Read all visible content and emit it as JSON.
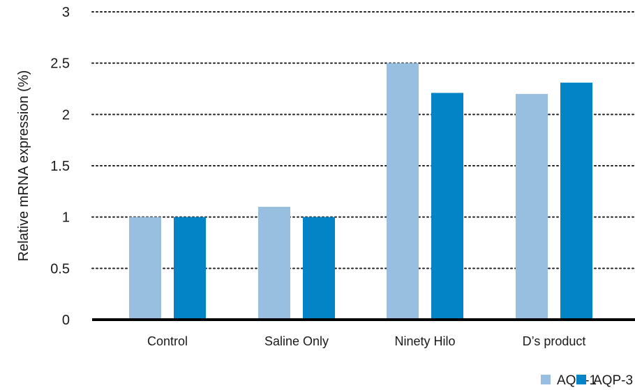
{
  "chart_data": {
    "type": "bar",
    "title": "",
    "xlabel": "",
    "ylabel": "Relative mRNA expression (%)",
    "ylim": [
      0,
      3
    ],
    "yticks": [
      0,
      0.5,
      1,
      1.5,
      2,
      2.5,
      3
    ],
    "ytick_labels": [
      "0",
      "0.5",
      "1",
      "1.5",
      "2",
      "2.5",
      "3"
    ],
    "grid": "horizontal-dotted",
    "legend_position": "bottom-right",
    "categories": [
      "Control",
      "Saline Only",
      "Ninety Hilo",
      "D’s product"
    ],
    "series": [
      {
        "name": "AQP-1",
        "color": "#99bfe0",
        "values": [
          1.0,
          1.1,
          2.5,
          2.2
        ]
      },
      {
        "name": "AQP-3",
        "color": "#0284c7",
        "values": [
          1.0,
          1.0,
          2.21,
          2.31
        ]
      }
    ]
  }
}
